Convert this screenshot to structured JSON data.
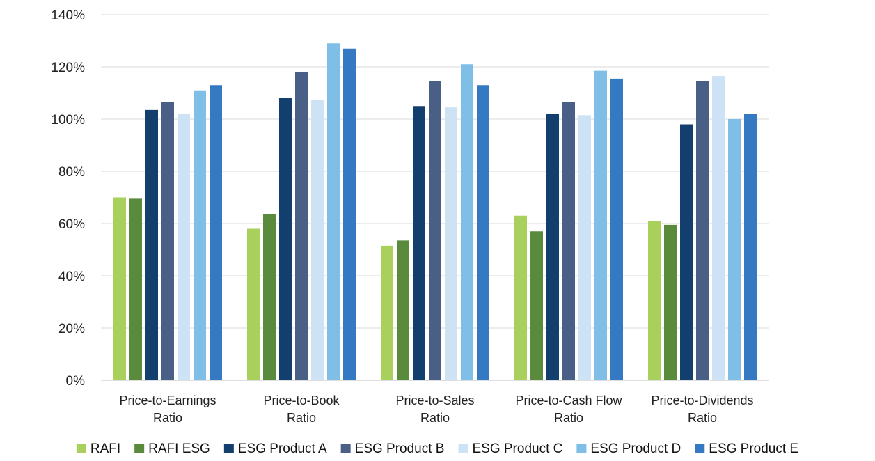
{
  "chart_data": {
    "type": "bar",
    "title": "",
    "xlabel": "",
    "ylabel": "",
    "ylim": [
      0,
      140
    ],
    "yticks": [
      0,
      20,
      40,
      60,
      80,
      100,
      120,
      140
    ],
    "ytick_labels": [
      "0%",
      "20%",
      "40%",
      "60%",
      "80%",
      "100%",
      "120%",
      "140%"
    ],
    "grid": true,
    "legend_position": "bottom",
    "categories": [
      [
        "Price-to-Earnings",
        "Ratio"
      ],
      [
        "Price-to-Book",
        "Ratio"
      ],
      [
        "Price-to-Sales",
        "Ratio"
      ],
      [
        "Price-to-Cash Flow",
        "Ratio"
      ],
      [
        "Price-to-Dividends",
        "Ratio"
      ]
    ],
    "series": [
      {
        "name": "RAFI",
        "color": "#a9cf5c",
        "values": [
          70,
          58,
          51.5,
          63,
          61
        ]
      },
      {
        "name": "RAFI ESG",
        "color": "#5a8a3c",
        "values": [
          69.5,
          63.5,
          53.5,
          57,
          59.5
        ]
      },
      {
        "name": "ESG Product A",
        "color": "#133f6e",
        "values": [
          103.5,
          108,
          105,
          102,
          98
        ]
      },
      {
        "name": "ESG Product B",
        "color": "#4a5f86",
        "values": [
          106.5,
          118,
          114.5,
          106.5,
          114.5
        ]
      },
      {
        "name": "ESG Product C",
        "color": "#cde2f4",
        "values": [
          102,
          107.5,
          104.5,
          101.5,
          116.5
        ]
      },
      {
        "name": "ESG Product D",
        "color": "#7ebee7",
        "values": [
          111,
          129,
          121,
          118.5,
          100
        ]
      },
      {
        "name": "ESG Product E",
        "color": "#3579c2",
        "values": [
          113,
          127,
          113,
          115.5,
          102
        ]
      }
    ]
  }
}
